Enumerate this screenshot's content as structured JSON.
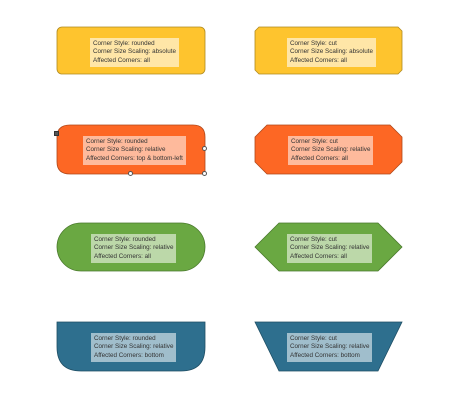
{
  "colors": {
    "yellow_fill": "#fec42e",
    "yellow_stroke": "#b08a1f",
    "orange_fill": "#fd6724",
    "orange_stroke": "#b0481a",
    "green_fill": "#6aa842",
    "green_stroke": "#4a7a2c",
    "blue_fill": "#2e6f8e",
    "blue_stroke": "#1f4e64"
  },
  "shapes": [
    {
      "line1": "Corner Style: rounded",
      "line2": "Corner Size Scaling: absolute",
      "line3": "Affected Corners: all"
    },
    {
      "line1": "Corner Style: cut",
      "line2": "Corner Size Scaling: absolute",
      "line3": "Affected Corners: all"
    },
    {
      "line1": "Corner Style: rounded",
      "line2": "Corner Size Scaling: relative",
      "line3": "Affected Corners: top & bottom-left"
    },
    {
      "line1": "Corner Style: cut",
      "line2": "Corner Size Scaling: relative",
      "line3": "Affected Corners: all"
    },
    {
      "line1": "Corner Style: rounded",
      "line2": "Corner Size Scaling: relative",
      "line3": "Affected Corners: all"
    },
    {
      "line1": "Corner Style: cut",
      "line2": "Corner Size Scaling: relative",
      "line3": "Affected Corners: all"
    },
    {
      "line1": "Corner Style: rounded",
      "line2": "Corner Size Scaling: relative",
      "line3": "Affected Corners: bottom"
    },
    {
      "line1": "Corner Style: cut",
      "line2": "Corner Size Scaling: relative",
      "line3": "Affected Corners: bottom"
    }
  ]
}
